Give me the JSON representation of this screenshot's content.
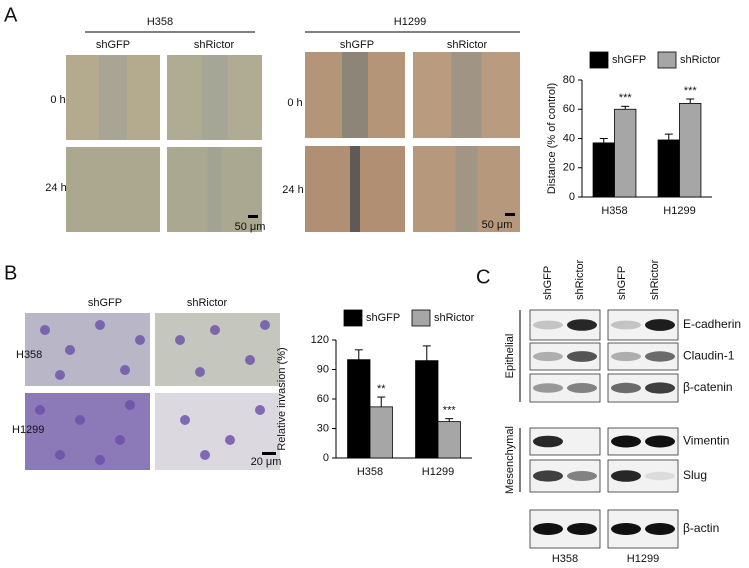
{
  "panel_a": {
    "label": "A",
    "cell_lines": [
      "H358",
      "H1299"
    ],
    "conditions": [
      "shGFP",
      "shRictor"
    ],
    "timepoints": [
      "0 h",
      "24 h"
    ],
    "scale_bar": "50 μm"
  },
  "panel_b": {
    "label": "B",
    "cell_lines": [
      "H358",
      "H1299"
    ],
    "conditions": [
      "shGFP",
      "shRictor"
    ],
    "scale_bar": "20 μm"
  },
  "panel_c": {
    "label": "C",
    "lanes": [
      "shGFP",
      "shRictor"
    ],
    "cell_lines": [
      "H358",
      "H1299"
    ],
    "groups": [
      "Epithelial",
      "Mesenchymal"
    ],
    "proteins": [
      "E-cadherin",
      "Claudin-1",
      "β-catenin",
      "Vimentin",
      "Slug",
      "β-actin"
    ]
  },
  "chart_data": [
    {
      "type": "bar",
      "ylabel": "Distance (% of control)",
      "categories": [
        "H358",
        "H1299"
      ],
      "series": [
        {
          "name": "shGFP",
          "color": "#000000",
          "values": [
            37,
            39
          ],
          "errors": [
            3,
            4
          ]
        },
        {
          "name": "shRictor",
          "color": "#a6a6a6",
          "values": [
            60,
            64
          ],
          "errors": [
            2,
            3
          ],
          "significance": [
            "***",
            "***"
          ]
        }
      ],
      "ylim": [
        0,
        80
      ],
      "yticks": [
        0,
        20,
        40,
        60,
        80
      ]
    },
    {
      "type": "bar",
      "ylabel": "Relative invasion (%)",
      "categories": [
        "H358",
        "H1299"
      ],
      "series": [
        {
          "name": "shGFP",
          "color": "#000000",
          "values": [
            100,
            99
          ],
          "errors": [
            10,
            15
          ]
        },
        {
          "name": "shRictor",
          "color": "#a6a6a6",
          "values": [
            52,
            37
          ],
          "errors": [
            10,
            3
          ],
          "significance": [
            "**",
            "***"
          ]
        }
      ],
      "ylim": [
        0,
        120
      ],
      "yticks": [
        0,
        30,
        60,
        90,
        120
      ]
    }
  ]
}
